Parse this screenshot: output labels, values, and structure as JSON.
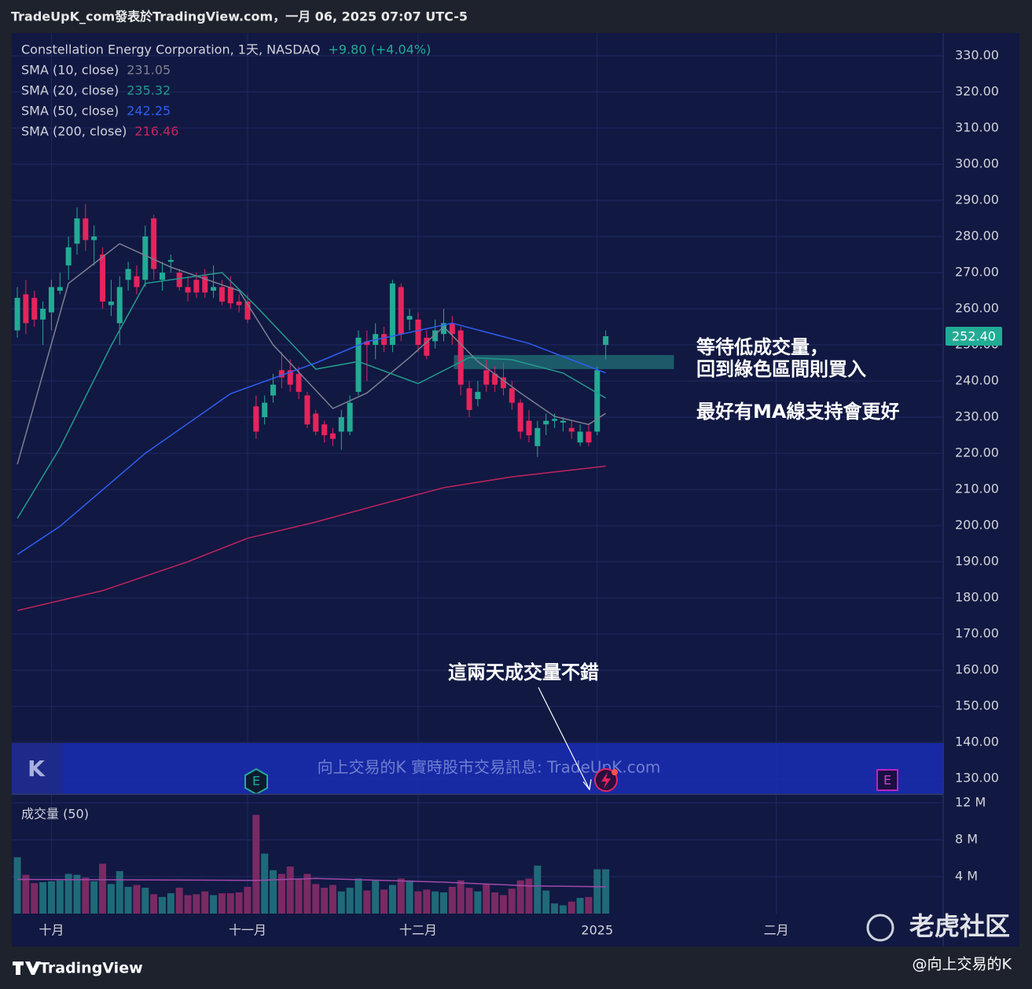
{
  "header": "TradeUpK_com發表於TradingView.com，一月 06, 2025 07:07 UTC-5",
  "chart_data": {
    "type": "candlestick",
    "symbol": "Constellation Energy Corporation, 1天, NASDAQ",
    "change": "+9.80 (+4.04%)",
    "up_color": "#22ab94",
    "down_color": "#e6245c",
    "up_volume_color": "#1f6a78",
    "down_volume_color": "#7a2a62",
    "candles": [
      {
        "o": 254,
        "h": 266,
        "l": 252,
        "c": 263,
        "v": 6.1
      },
      {
        "o": 264,
        "h": 268,
        "l": 253,
        "c": 256,
        "v": 4.2
      },
      {
        "o": 263,
        "h": 265,
        "l": 255,
        "c": 257,
        "v": 3.3
      },
      {
        "o": 257,
        "h": 262,
        "l": 250,
        "c": 260,
        "v": 3.4
      },
      {
        "o": 259,
        "h": 268,
        "l": 254,
        "c": 266,
        "v": 3.5
      },
      {
        "o": 265,
        "h": 270,
        "l": 264,
        "c": 266,
        "v": 3.6
      },
      {
        "o": 272,
        "h": 280,
        "l": 268,
        "c": 277,
        "v": 4.3
      },
      {
        "o": 278,
        "h": 288,
        "l": 275,
        "c": 285,
        "v": 4.2
      },
      {
        "o": 285,
        "h": 289,
        "l": 276,
        "c": 279,
        "v": 3.9
      },
      {
        "o": 279,
        "h": 283,
        "l": 272,
        "c": 280,
        "v": 3.5
      },
      {
        "o": 275,
        "h": 277,
        "l": 260,
        "c": 262,
        "v": 5.4
      },
      {
        "o": 261,
        "h": 268,
        "l": 258,
        "c": 262,
        "v": 3.2
      },
      {
        "o": 256,
        "h": 269,
        "l": 250,
        "c": 266,
        "v": 4.6
      },
      {
        "o": 268,
        "h": 273,
        "l": 265,
        "c": 271,
        "v": 2.9
      },
      {
        "o": 269,
        "h": 272,
        "l": 264,
        "c": 266,
        "v": 3.1
      },
      {
        "o": 268,
        "h": 283,
        "l": 266,
        "c": 280,
        "v": 2.8
      },
      {
        "o": 285,
        "h": 286,
        "l": 268,
        "c": 271,
        "v": 2.1
      },
      {
        "o": 268,
        "h": 273,
        "l": 265,
        "c": 270,
        "v": 1.8
      },
      {
        "o": 273,
        "h": 275,
        "l": 270,
        "c": 273.5,
        "v": 2.2
      },
      {
        "o": 270,
        "h": 271,
        "l": 265,
        "c": 266,
        "v": 2.8
      },
      {
        "o": 266,
        "h": 269,
        "l": 262,
        "c": 264.5,
        "v": 2.0
      },
      {
        "o": 268,
        "h": 270,
        "l": 263,
        "c": 264.5,
        "v": 2.1
      },
      {
        "o": 269,
        "h": 271,
        "l": 263,
        "c": 264.5,
        "v": 2.4
      },
      {
        "o": 265,
        "h": 272,
        "l": 263,
        "c": 266,
        "v": 2.0
      },
      {
        "o": 266,
        "h": 268,
        "l": 261,
        "c": 262,
        "v": 2.2
      },
      {
        "o": 266,
        "h": 269,
        "l": 260,
        "c": 261.5,
        "v": 2.2
      },
      {
        "o": 262,
        "h": 264,
        "l": 259,
        "c": 261,
        "v": 2.3
      },
      {
        "o": 262,
        "h": 264,
        "l": 256,
        "c": 257,
        "v": 2.9
      },
      {
        "o": 233,
        "h": 236,
        "l": 224,
        "c": 226,
        "v": 10.7
      },
      {
        "o": 230,
        "h": 236,
        "l": 228,
        "c": 234,
        "v": 6.5
      },
      {
        "o": 236,
        "h": 242,
        "l": 234,
        "c": 239,
        "v": 4.7
      },
      {
        "o": 243,
        "h": 248,
        "l": 238,
        "c": 241,
        "v": 4.3
      },
      {
        "o": 243,
        "h": 246,
        "l": 237,
        "c": 239,
        "v": 5.1
      },
      {
        "o": 242,
        "h": 244,
        "l": 235,
        "c": 237,
        "v": 3.8
      },
      {
        "o": 236,
        "h": 237,
        "l": 227,
        "c": 228,
        "v": 4.3
      },
      {
        "o": 231,
        "h": 232,
        "l": 225,
        "c": 226,
        "v": 3.2
      },
      {
        "o": 228,
        "h": 229,
        "l": 223,
        "c": 225,
        "v": 2.8
      },
      {
        "o": 225.5,
        "h": 227,
        "l": 222,
        "c": 224,
        "v": 3.1
      },
      {
        "o": 226,
        "h": 232,
        "l": 221,
        "c": 230,
        "v": 2.4
      },
      {
        "o": 226,
        "h": 236,
        "l": 225,
        "c": 234,
        "v": 2.8
      },
      {
        "o": 237,
        "h": 254,
        "l": 236,
        "c": 252,
        "v": 3.8
      },
      {
        "o": 251,
        "h": 254,
        "l": 240,
        "c": 250,
        "v": 2.5
      },
      {
        "o": 250,
        "h": 256,
        "l": 246,
        "c": 253,
        "v": 3.6
      },
      {
        "o": 253,
        "h": 255,
        "l": 248,
        "c": 250,
        "v": 2.6
      },
      {
        "o": 250,
        "h": 268,
        "l": 248,
        "c": 267,
        "v": 3.1
      },
      {
        "o": 266,
        "h": 267,
        "l": 251,
        "c": 253,
        "v": 3.8
      },
      {
        "o": 257,
        "h": 260,
        "l": 254,
        "c": 258,
        "v": 3.6
      },
      {
        "o": 257,
        "h": 259,
        "l": 248,
        "c": 250,
        "v": 2.4
      },
      {
        "o": 252,
        "h": 254,
        "l": 246,
        "c": 247,
        "v": 2.6
      },
      {
        "o": 251,
        "h": 257,
        "l": 249,
        "c": 254,
        "v": 2.4
      },
      {
        "o": 253,
        "h": 260,
        "l": 251,
        "c": 256,
        "v": 2.3
      },
      {
        "o": 256,
        "h": 258,
        "l": 250,
        "c": 253,
        "v": 2.9
      },
      {
        "o": 254,
        "h": 255,
        "l": 236,
        "c": 239,
        "v": 3.6
      },
      {
        "o": 238,
        "h": 240,
        "l": 230,
        "c": 232,
        "v": 2.8
      },
      {
        "o": 235,
        "h": 240,
        "l": 233,
        "c": 237,
        "v": 2.4
      },
      {
        "o": 243,
        "h": 246,
        "l": 237,
        "c": 239,
        "v": 3.2
      },
      {
        "o": 242,
        "h": 244,
        "l": 237,
        "c": 239,
        "v": 2.3
      },
      {
        "o": 241,
        "h": 245,
        "l": 236,
        "c": 238,
        "v": 2.0
      },
      {
        "o": 238,
        "h": 240,
        "l": 232,
        "c": 234,
        "v": 2.7
      },
      {
        "o": 234,
        "h": 235,
        "l": 224,
        "c": 226,
        "v": 3.6
      },
      {
        "o": 229,
        "h": 232,
        "l": 223,
        "c": 225,
        "v": 3.8
      },
      {
        "o": 222,
        "h": 229,
        "l": 219,
        "c": 227,
        "v": 5.2
      },
      {
        "o": 228,
        "h": 231,
        "l": 225,
        "c": 229,
        "v": 2.5
      },
      {
        "o": 229,
        "h": 231,
        "l": 227,
        "c": 229.5,
        "v": 1.1
      },
      {
        "o": 228.5,
        "h": 230,
        "l": 226,
        "c": 229,
        "v": 0.9
      },
      {
        "o": 227,
        "h": 229,
        "l": 224,
        "c": 226,
        "v": 1.3
      },
      {
        "o": 223,
        "h": 228,
        "l": 222,
        "c": 226,
        "v": 1.7
      },
      {
        "o": 226,
        "h": 228,
        "l": 222,
        "c": 223,
        "v": 1.8
      },
      {
        "o": 226,
        "h": 244,
        "l": 225,
        "c": 243,
        "v": 4.8
      },
      {
        "o": 250,
        "h": 254,
        "l": 246,
        "c": 252.4,
        "v": 4.8
      }
    ],
    "ma_series": [
      {
        "name": "SMA (10, close)",
        "color": "#7d8090",
        "x": [
          0,
          6,
          12,
          18,
          26,
          30,
          37,
          41,
          46,
          50,
          54,
          59,
          63,
          67,
          69
        ],
        "values": [
          217,
          267,
          278,
          271.5,
          265,
          250,
          232.4,
          236.7,
          246.5,
          255,
          245.4,
          236.7,
          230.2,
          228,
          231.05
        ]
      },
      {
        "name": "SMA (20, close)",
        "color": "#239b8c",
        "x": [
          0,
          5,
          11,
          15,
          24,
          28,
          35,
          40,
          47,
          53,
          58,
          64,
          69
        ],
        "values": [
          202,
          221.5,
          249.8,
          267,
          270,
          260.7,
          243.3,
          245.4,
          239.3,
          246.5,
          245.9,
          242.2,
          235.32
        ]
      },
      {
        "name": "SMA (50, close)",
        "color": "#2f5ef0",
        "x": [
          0,
          5,
          15,
          25,
          35,
          41,
          51,
          60,
          69
        ],
        "values": [
          192,
          199.8,
          220,
          236.5,
          245,
          250.9,
          256,
          250.4,
          242.25
        ]
      },
      {
        "name": "SMA (200, close)",
        "color": "#c2245e",
        "x": [
          0,
          10,
          20,
          27,
          35,
          42,
          50,
          58,
          69
        ],
        "values": [
          176.5,
          182,
          190,
          196.5,
          201,
          205.5,
          210.5,
          213.5,
          216.46
        ]
      }
    ],
    "price_label": {
      "value": 252.4,
      "label": "252.40"
    },
    "zone": {
      "x": [
        51.2,
        77
      ],
      "y": [
        243.3,
        247.2
      ],
      "color": "#1f6b74"
    },
    "xlim": [
      -0.65,
      108.3
    ],
    "xticks": [
      {
        "value": 4,
        "label": "十月"
      },
      {
        "value": 27,
        "label": "十一月"
      },
      {
        "value": 47,
        "label": "十二月"
      },
      {
        "value": 68,
        "label": "2025"
      },
      {
        "value": 89,
        "label": "二月"
      }
    ],
    "ylim": [
      125.9,
      336.3
    ],
    "yticks": [
      {
        "value": 130,
        "label": "130.00"
      },
      {
        "value": 140,
        "label": "140.00"
      },
      {
        "value": 150,
        "label": "150.00"
      },
      {
        "value": 160,
        "label": "160.00"
      },
      {
        "value": 170,
        "label": "170.00"
      },
      {
        "value": 180,
        "label": "180.00"
      },
      {
        "value": 190,
        "label": "190.00"
      },
      {
        "value": 200,
        "label": "200.00"
      },
      {
        "value": 210,
        "label": "210.00"
      },
      {
        "value": 220,
        "label": "220.00"
      },
      {
        "value": 230,
        "label": "230.00"
      },
      {
        "value": 240,
        "label": "240.00"
      },
      {
        "value": 250,
        "label": "250.00"
      },
      {
        "value": 260,
        "label": "260.00"
      },
      {
        "value": 270,
        "label": "270.00"
      },
      {
        "value": 280,
        "label": "280.00"
      },
      {
        "value": 290,
        "label": "290.00"
      },
      {
        "value": 300,
        "label": "300.00"
      },
      {
        "value": 310,
        "label": "310.00"
      },
      {
        "value": 320,
        "label": "320.00"
      },
      {
        "value": 330,
        "label": "330.00"
      }
    ],
    "volume_title": "成交量 (50)",
    "volume_ylim": [
      0,
      12.85
    ],
    "volume_yticks": [
      {
        "value": 4,
        "label": "4 M"
      },
      {
        "value": 8,
        "label": "8 M"
      },
      {
        "value": 12,
        "label": "12 M"
      }
    ],
    "volume_ma": {
      "color": "#a04aa8",
      "x": [
        0,
        28,
        35,
        50,
        60,
        69
      ],
      "values": [
        3.7,
        3.6,
        3.8,
        3.4,
        3.0,
        2.9
      ]
    },
    "grid": true,
    "annotations": [
      "等待低成交量，",
      "回到綠色區間則買入",
      "最好有MA線支持會更好",
      "這兩天成交量不錯"
    ]
  },
  "overlay": {
    "logo": "K",
    "text": "向上交易的K 實時股市交易訊息: TradeUpK.com",
    "badges": [
      "E",
      "E"
    ]
  },
  "footer": {
    "brand": "TradingView",
    "author": "@向上交易的K",
    "watermark": "老虎社区"
  }
}
